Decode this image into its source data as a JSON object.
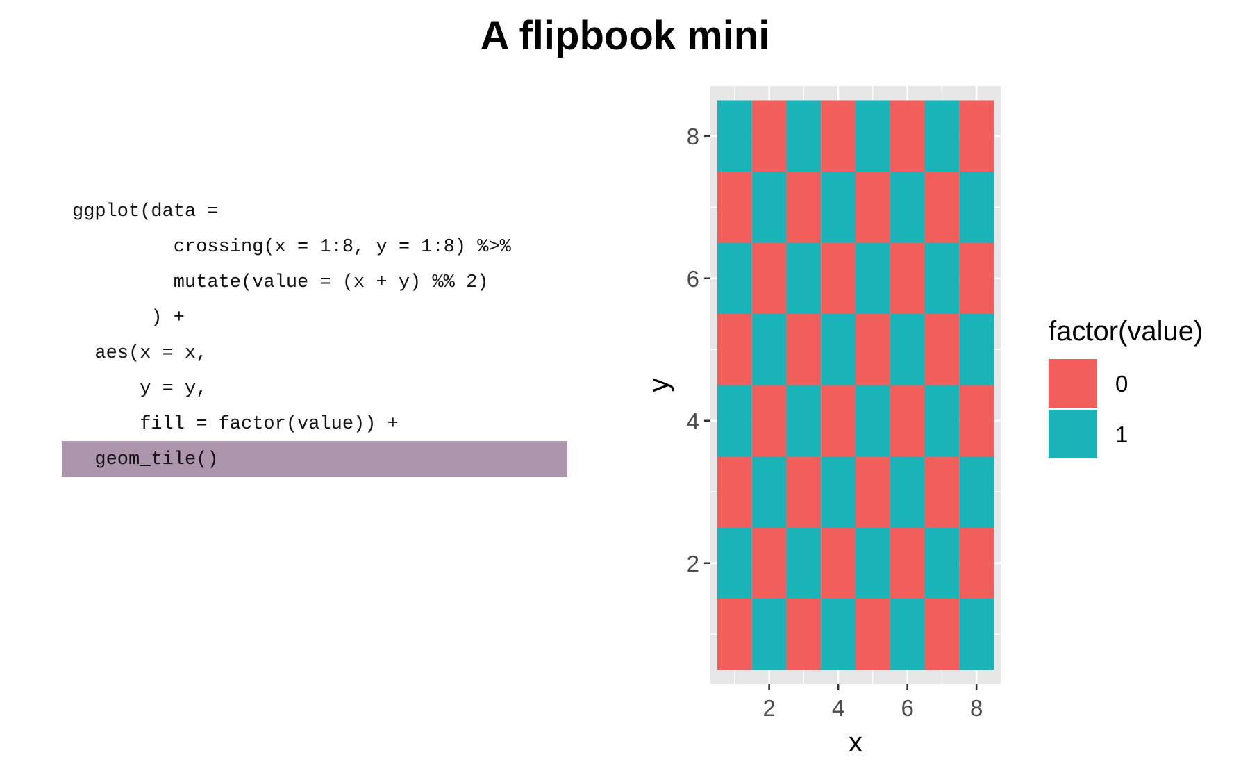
{
  "page": {
    "title": "A flipbook mini"
  },
  "code": {
    "lines": [
      {
        "text": "ggplot(data =",
        "indent": 0,
        "highlighted": false
      },
      {
        "text": "crossing(x = 1:8, y = 1:8) %>%",
        "indent": 9,
        "highlighted": false
      },
      {
        "text": "mutate(value = (x + y) %% 2)",
        "indent": 9,
        "highlighted": false
      },
      {
        "text": ") +",
        "indent": 7,
        "highlighted": false
      },
      {
        "text": "aes(x = x,",
        "indent": 2,
        "highlighted": false
      },
      {
        "text": "y = y,",
        "indent": 6,
        "highlighted": false
      },
      {
        "text": "fill = factor(value)) +",
        "indent": 6,
        "highlighted": false
      },
      {
        "text": "geom_tile()",
        "indent": 2,
        "highlighted": true
      }
    ],
    "highlight_color": "#ae95ae"
  },
  "chart_data": {
    "type": "heatmap",
    "x": [
      1,
      2,
      3,
      4,
      5,
      6,
      7,
      8
    ],
    "y": [
      1,
      2,
      3,
      4,
      5,
      6,
      7,
      8
    ],
    "value_rule": "(x + y) %% 2",
    "values": [
      [
        0,
        1,
        0,
        1,
        0,
        1,
        0,
        1
      ],
      [
        1,
        0,
        1,
        0,
        1,
        0,
        1,
        0
      ],
      [
        0,
        1,
        0,
        1,
        0,
        1,
        0,
        1
      ],
      [
        1,
        0,
        1,
        0,
        1,
        0,
        1,
        0
      ],
      [
        0,
        1,
        0,
        1,
        0,
        1,
        0,
        1
      ],
      [
        1,
        0,
        1,
        0,
        1,
        0,
        1,
        0
      ],
      [
        0,
        1,
        0,
        1,
        0,
        1,
        0,
        1
      ],
      [
        1,
        0,
        1,
        0,
        1,
        0,
        1,
        0
      ]
    ],
    "xlabel": "x",
    "ylabel": "y",
    "xlim": [
      0.3,
      8.7
    ],
    "ylim": [
      0.3,
      8.7
    ],
    "x_ticks": [
      "2",
      "4",
      "6",
      "8"
    ],
    "y_ticks": [
      "2",
      "4",
      "6",
      "8"
    ],
    "grid": true,
    "legend": {
      "title": "factor(value)",
      "position": "right",
      "entries": [
        {
          "label": "0",
          "color": "#f25e5b"
        },
        {
          "label": "1",
          "color": "#1ab4b8"
        }
      ]
    },
    "colors": {
      "panel": "#e6e6e6",
      "grid": "#ffffff"
    }
  }
}
